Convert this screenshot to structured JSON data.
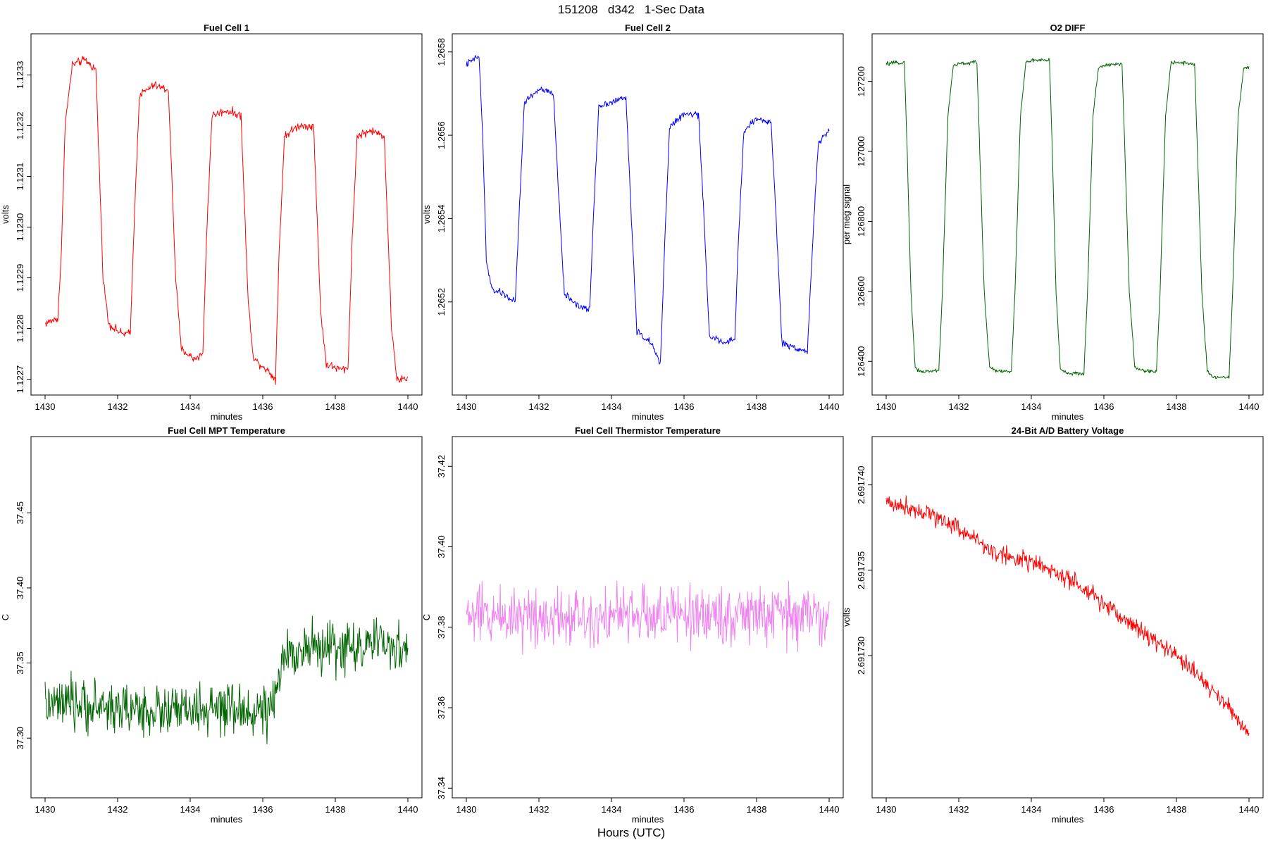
{
  "figure": {
    "title": "151208   d342   1-Sec Data",
    "outer_xlabel": "Hours (UTC)"
  },
  "chart_data": [
    {
      "id": "fc1",
      "type": "line",
      "title": "Fuel Cell 1",
      "xlabel": "minutes",
      "ylabel": "volts",
      "color": "#ff0000",
      "xlim": [
        1430,
        1440
      ],
      "ylim": [
        1.12268,
        1.12337
      ],
      "xticks": [
        1430,
        1432,
        1434,
        1436,
        1438,
        1440
      ],
      "yticks": [
        1.1227,
        1.1228,
        1.1229,
        1.123,
        1.1231,
        1.1232,
        1.1233
      ],
      "ytick_labels": [
        "1.1227",
        "1.1228",
        "1.1229",
        "1.1230",
        "1.1231",
        "1.1232",
        "1.1233"
      ],
      "noise": 1.2e-05,
      "series": [
        {
          "name": "Fuel Cell 1",
          "x": [
            1430.0,
            1430.35,
            1430.45,
            1430.55,
            1430.75,
            1431.1,
            1431.4,
            1431.6,
            1431.75,
            1432.1,
            1432.35,
            1432.45,
            1432.6,
            1433.0,
            1433.4,
            1433.6,
            1433.75,
            1434.1,
            1434.35,
            1434.45,
            1434.6,
            1435.0,
            1435.4,
            1435.6,
            1435.75,
            1436.1,
            1436.35,
            1436.45,
            1436.6,
            1437.0,
            1437.4,
            1437.6,
            1437.75,
            1438.1,
            1438.35,
            1438.45,
            1438.6,
            1439.0,
            1439.35,
            1439.55,
            1439.7,
            1440.0
          ],
          "y": [
            1.12281,
            1.12282,
            1.12295,
            1.1232,
            1.12332,
            1.12333,
            1.12331,
            1.1229,
            1.12281,
            1.12279,
            1.12279,
            1.123,
            1.12326,
            1.12328,
            1.12327,
            1.1229,
            1.12276,
            1.12274,
            1.12275,
            1.12298,
            1.12322,
            1.12323,
            1.12322,
            1.12285,
            1.12274,
            1.12272,
            1.1227,
            1.12295,
            1.12318,
            1.1232,
            1.1232,
            1.12283,
            1.12273,
            1.12272,
            1.12272,
            1.12295,
            1.12318,
            1.12319,
            1.12318,
            1.1228,
            1.1227,
            1.1227
          ]
        }
      ]
    },
    {
      "id": "fc2",
      "type": "line",
      "title": "Fuel Cell 2",
      "xlabel": "minutes",
      "ylabel": "volts",
      "color": "#0000ff",
      "xlim": [
        1430,
        1440
      ],
      "ylim": [
        1.26499,
        1.26583
      ],
      "xticks": [
        1430,
        1432,
        1434,
        1436,
        1438,
        1440
      ],
      "yticks": [
        1.2652,
        1.2654,
        1.2656,
        1.2658
      ],
      "ytick_labels": [
        "1.2652",
        "1.2654",
        "1.2656",
        "1.2658"
      ],
      "noise": 1.2e-05,
      "series": [
        {
          "name": "Fuel Cell 2",
          "x": [
            1430.0,
            1430.35,
            1430.45,
            1430.55,
            1430.7,
            1431.0,
            1431.35,
            1431.45,
            1431.6,
            1432.0,
            1432.4,
            1432.55,
            1432.7,
            1433.1,
            1433.4,
            1433.5,
            1433.65,
            1434.0,
            1434.4,
            1434.55,
            1434.7,
            1435.1,
            1435.35,
            1435.45,
            1435.6,
            1436.0,
            1436.4,
            1436.55,
            1436.7,
            1437.1,
            1437.4,
            1437.5,
            1437.65,
            1438.0,
            1438.4,
            1438.55,
            1438.7,
            1439.1,
            1439.4,
            1439.55,
            1439.7,
            1440.0
          ],
          "y": [
            1.26577,
            1.26579,
            1.2656,
            1.2653,
            1.26523,
            1.26522,
            1.2652,
            1.2654,
            1.26568,
            1.26571,
            1.2657,
            1.26545,
            1.26522,
            1.26519,
            1.26518,
            1.2654,
            1.26567,
            1.26568,
            1.26569,
            1.2654,
            1.26513,
            1.2651,
            1.26505,
            1.2653,
            1.26562,
            1.26565,
            1.26565,
            1.2654,
            1.26512,
            1.2651,
            1.26511,
            1.26535,
            1.26561,
            1.26564,
            1.26563,
            1.26538,
            1.2651,
            1.26509,
            1.26508,
            1.26535,
            1.26558,
            1.26561
          ]
        }
      ]
    },
    {
      "id": "o2",
      "type": "line",
      "title": "O2 DIFF",
      "xlabel": "minutes",
      "ylabel": "per meg signal",
      "color": "#006400",
      "xlim": [
        1430,
        1440
      ],
      "ylim": [
        126320,
        127320
      ],
      "xticks": [
        1430,
        1432,
        1434,
        1436,
        1438,
        1440
      ],
      "yticks": [
        126400,
        126600,
        126800,
        127000,
        127200
      ],
      "ytick_labels": [
        "126400",
        "126600",
        "127000",
        "127200"
      ],
      "ytick_labels_full": [
        "126400",
        "126600",
        "126800",
        "127000",
        "127200"
      ],
      "noise": 8,
      "series": [
        {
          "name": "O2 DIFF",
          "x": [
            1430.0,
            1430.5,
            1430.58,
            1430.68,
            1430.8,
            1431.0,
            1431.45,
            1431.55,
            1431.7,
            1431.85,
            1432.0,
            1432.5,
            1432.58,
            1432.7,
            1432.85,
            1433.0,
            1433.45,
            1433.55,
            1433.7,
            1433.85,
            1434.0,
            1434.5,
            1434.58,
            1434.68,
            1434.8,
            1435.0,
            1435.45,
            1435.55,
            1435.7,
            1435.85,
            1436.0,
            1436.5,
            1436.58,
            1436.7,
            1436.85,
            1437.0,
            1437.45,
            1437.55,
            1437.7,
            1437.85,
            1438.0,
            1438.5,
            1438.58,
            1438.7,
            1438.85,
            1439.0,
            1439.45,
            1439.55,
            1439.7,
            1439.85,
            1440.0
          ],
          "y": [
            127250,
            127255,
            127000,
            126600,
            126380,
            126370,
            126375,
            126600,
            127100,
            127245,
            127250,
            127255,
            127000,
            126600,
            126385,
            126375,
            126370,
            126600,
            127100,
            127255,
            127260,
            127260,
            127000,
            126600,
            126380,
            126365,
            126365,
            126600,
            127100,
            127240,
            127245,
            127250,
            127000,
            126600,
            126385,
            126375,
            126370,
            126600,
            127100,
            127255,
            127255,
            127250,
            127000,
            126600,
            126370,
            126355,
            126355,
            126600,
            127100,
            127235,
            127240
          ]
        }
      ]
    },
    {
      "id": "mpt",
      "type": "line",
      "title": "Fuel Cell MPT Temperature",
      "xlabel": "minutes",
      "ylabel": "C",
      "color": "#006400",
      "xlim": [
        1430,
        1440
      ],
      "ylim": [
        37.264,
        37.497
      ],
      "xticks": [
        1430,
        1432,
        1434,
        1436,
        1438,
        1440
      ],
      "yticks": [
        37.3,
        37.35,
        37.4,
        37.45
      ],
      "ytick_labels": [
        "37.30",
        "37.35",
        "37.40",
        "37.45"
      ],
      "noise": 0.025,
      "series": [
        {
          "name": "MPT Temperature",
          "x": [
            1430.0,
            1431.0,
            1432.0,
            1433.0,
            1434.0,
            1435.0,
            1436.0,
            1436.3,
            1436.6,
            1437.0,
            1438.0,
            1439.0,
            1440.0
          ],
          "y": [
            37.322,
            37.322,
            37.32,
            37.318,
            37.318,
            37.318,
            37.318,
            37.32,
            37.355,
            37.36,
            37.36,
            37.362,
            37.36
          ]
        }
      ]
    },
    {
      "id": "therm",
      "type": "line",
      "title": "Fuel Cell Thermistor Temperature",
      "xlabel": "minutes",
      "ylabel": "C",
      "color": "#ee82ee",
      "xlim": [
        1430,
        1440
      ],
      "ylim": [
        37.339,
        37.426
      ],
      "xticks": [
        1430,
        1432,
        1434,
        1436,
        1438,
        1440
      ],
      "yticks": [
        37.34,
        37.36,
        37.38,
        37.4,
        37.42
      ],
      "ytick_labels": [
        "37.34",
        "37.36",
        "37.38",
        "37.40",
        "37.42"
      ],
      "noise": 0.011,
      "series": [
        {
          "name": "Thermistor Temperature",
          "x": [
            1430.0,
            1435.0,
            1440.0
          ],
          "y": [
            37.383,
            37.383,
            37.383
          ]
        }
      ]
    },
    {
      "id": "batt",
      "type": "line",
      "title": "24-Bit A/D Battery Voltage",
      "xlabel": "minutes",
      "ylabel": "volts",
      "color": "#ff0000",
      "xlim": [
        1430,
        1440
      ],
      "ylim": [
        2.691722,
        2.6917425
      ],
      "xticks": [
        1430,
        1432,
        1434,
        1436,
        1438,
        1440
      ],
      "yticks": [
        2.69173,
        2.691735,
        2.69174
      ],
      "ytick_labels": [
        "2.691730",
        "2.691735",
        "2.691740"
      ],
      "noise": 8e-07,
      "series": [
        {
          "name": "Battery Voltage",
          "x": [
            1430.0,
            1431.0,
            1432.0,
            1433.0,
            1434.0,
            1435.0,
            1436.0,
            1437.0,
            1438.0,
            1439.0,
            1440.0
          ],
          "y": [
            2.691739,
            2.6917385,
            2.6917375,
            2.691736,
            2.6917355,
            2.6917345,
            2.691733,
            2.6917315,
            2.69173,
            2.691728,
            2.6917255
          ]
        }
      ]
    }
  ]
}
